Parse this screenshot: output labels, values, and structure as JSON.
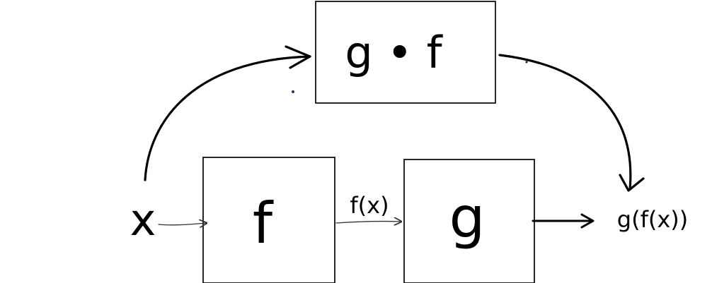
{
  "diagram": {
    "input_label": "x",
    "composite_box_label": "g • f",
    "f_box_label": "f",
    "g_box_label": "g",
    "intermediate_label": "f(x)",
    "output_label": "g(f(x))"
  },
  "colors": {
    "ink": "#000000",
    "box_stroke": "#111111",
    "background": "#ffffff"
  }
}
